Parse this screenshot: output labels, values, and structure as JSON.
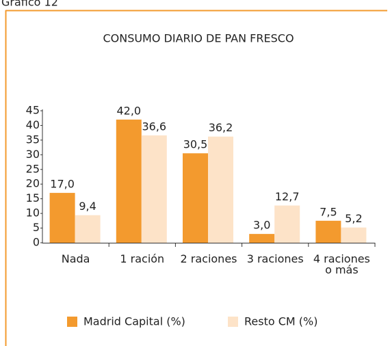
{
  "header": "Gráfico 12",
  "chart_data": {
    "type": "bar",
    "title": "CONSUMO DIARIO DE PAN FRESCO",
    "categories": [
      "Nada",
      "1 ración",
      "2 raciones",
      "3 raciones",
      "4 raciones\no más"
    ],
    "series": [
      {
        "name": "Madrid Capital (%)",
        "color": "#f39a2e",
        "values": [
          17.0,
          42.0,
          30.5,
          3.0,
          7.5
        ],
        "value_labels": [
          "17,0",
          "42,0",
          "30,5",
          "3,0",
          "7,5"
        ]
      },
      {
        "name": "Resto CM (%)",
        "color": "#fde3c8",
        "values": [
          9.4,
          36.6,
          36.2,
          12.7,
          5.2
        ],
        "value_labels": [
          "9,4",
          "36,6",
          "36,2",
          "12,7",
          "5,2"
        ]
      }
    ],
    "ylim": [
      0,
      45
    ],
    "yticks": [
      0,
      5,
      10,
      15,
      20,
      25,
      30,
      35,
      40,
      45
    ]
  }
}
